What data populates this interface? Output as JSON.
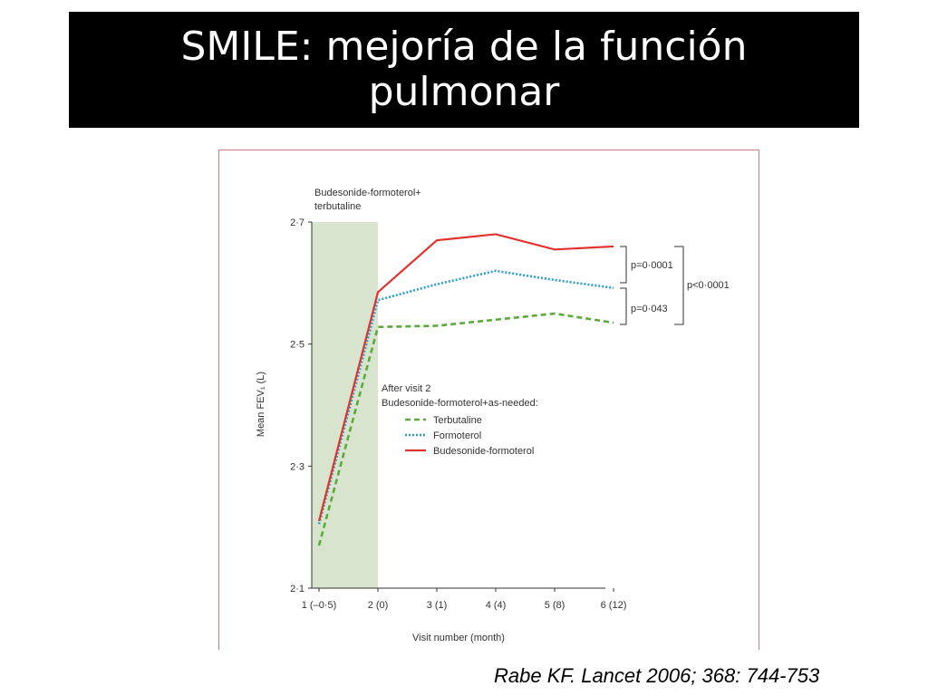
{
  "slide": {
    "title_line1": "SMILE: mejoría de la función",
    "title_line2": "pulmonar",
    "citation": "Rabe KF. Lancet 2006; 368: 744-753"
  },
  "chart_data": {
    "type": "line",
    "xlabel": "Visit number (month)",
    "ylabel": "Mean FEV₁ (L)",
    "categories": [
      "1 (–0·5)",
      "2 (0)",
      "3 (1)",
      "4 (4)",
      "5 (8)",
      "6 (12)"
    ],
    "y_ticks": [
      "2·1",
      "2·3",
      "2·5",
      "2·7"
    ],
    "y_tick_values": [
      2.1,
      2.3,
      2.5,
      2.7
    ],
    "ylim": [
      2.1,
      2.7
    ],
    "run_in_label_line1": "Budesonide-formoterol+",
    "run_in_label_line2": "terbutaline",
    "legend_title_line1": "After visit 2",
    "legend_title_line2": "Budesonide-formoterol+as-needed:",
    "series": [
      {
        "name": "Terbutaline",
        "color": "#5aab3c",
        "dash": "dashed",
        "values": [
          2.17,
          2.528,
          2.53,
          2.54,
          2.55,
          2.535
        ]
      },
      {
        "name": "Formoterol",
        "color": "#2b9fc9",
        "dash": "dotted",
        "values": [
          2.205,
          2.572,
          2.598,
          2.62,
          2.605,
          2.592
        ]
      },
      {
        "name": "Budesonide-formoterol",
        "color": "#e0332e",
        "dash": "solid",
        "values": [
          2.21,
          2.585,
          2.67,
          2.68,
          2.655,
          2.66
        ]
      }
    ],
    "annotations": {
      "p_upper": "p=0·0001",
      "p_lower": "p=0·043",
      "p_overall": "p<0·0001"
    }
  }
}
